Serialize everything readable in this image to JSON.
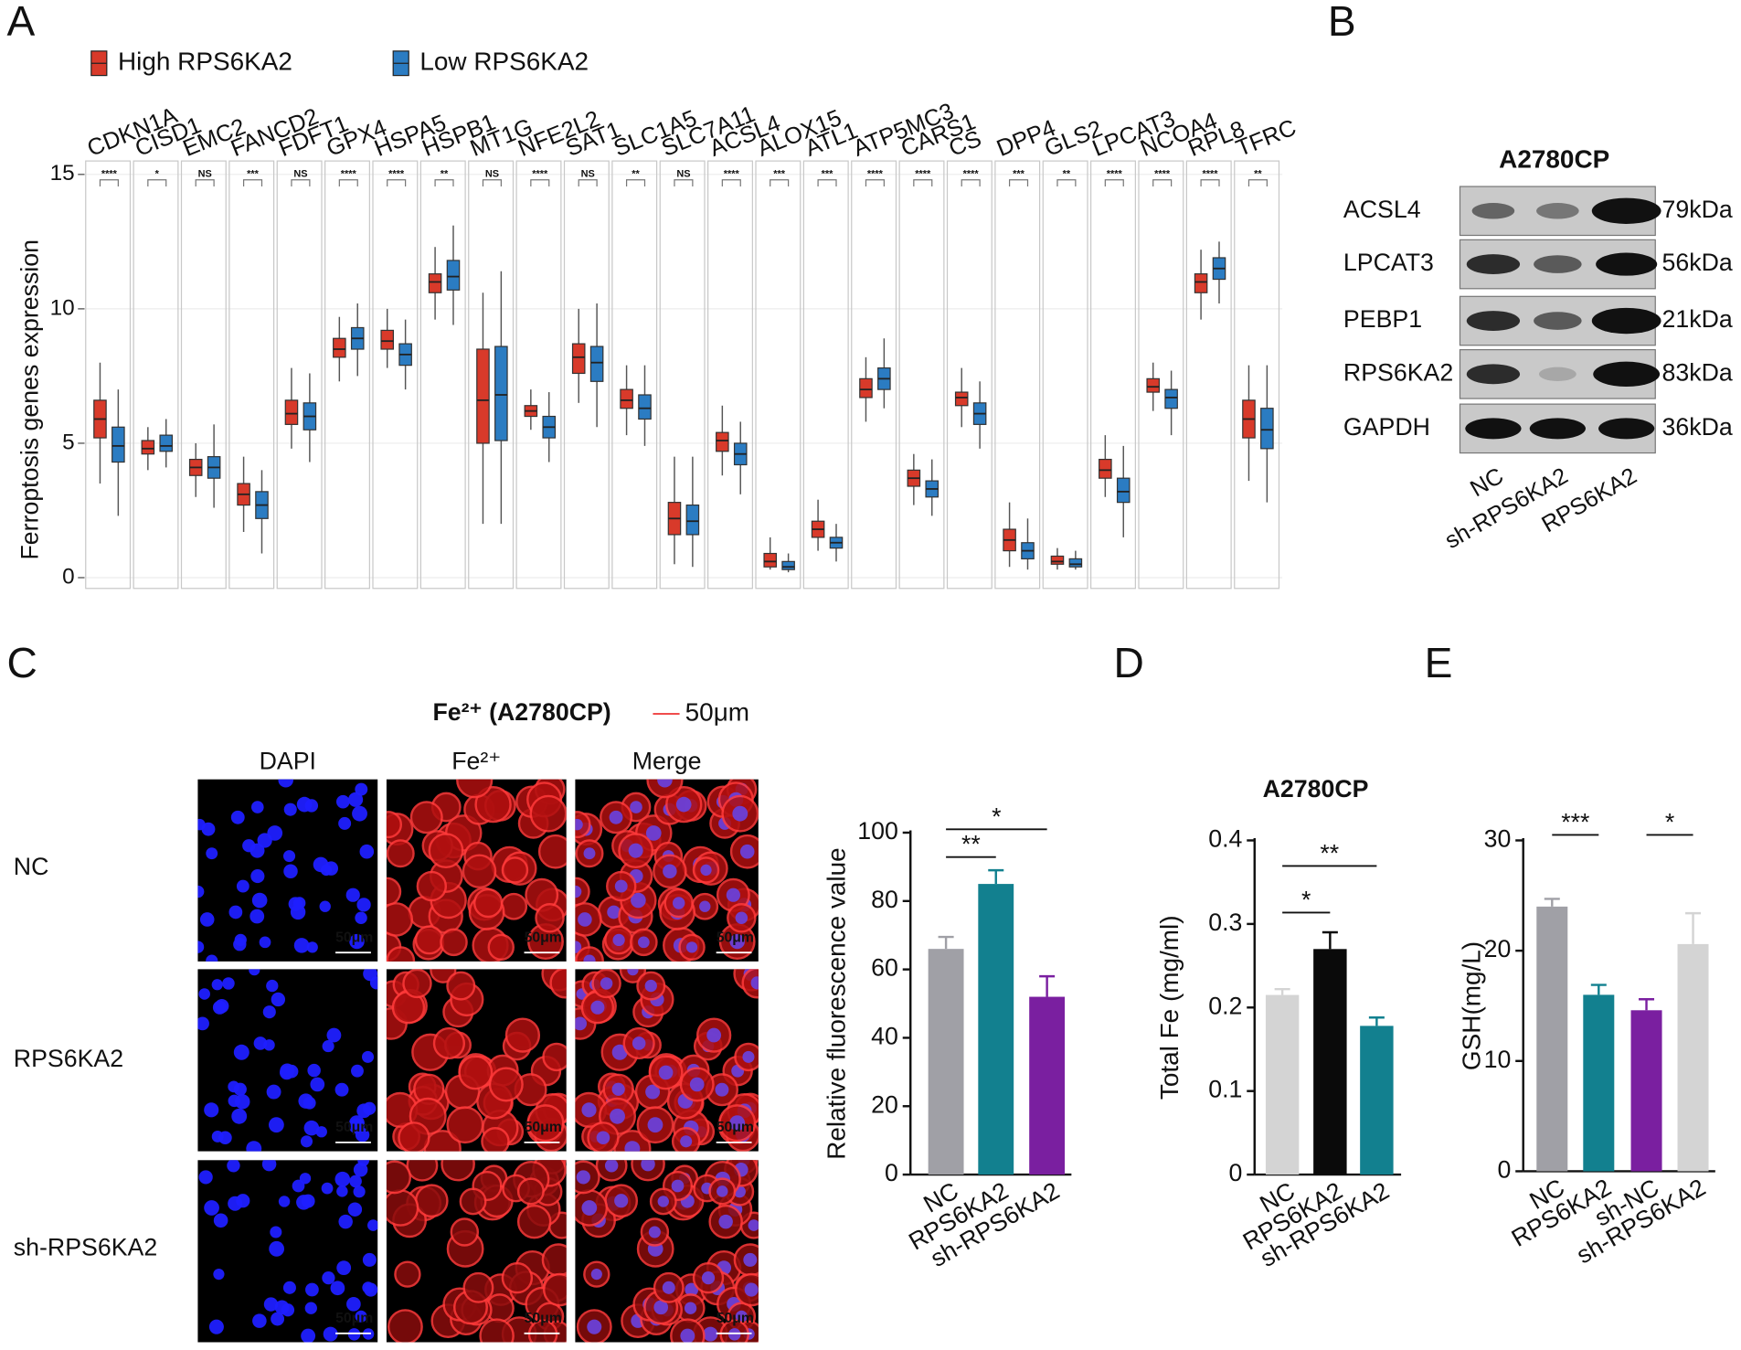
{
  "panel_labels": [
    "A",
    "B",
    "C",
    "D",
    "E"
  ],
  "chart_data": [
    {
      "type": "box",
      "ylabel": "Ferroptosis genes expression",
      "categories": [
        "CDKN1A",
        "CISD1",
        "EMC2",
        "FANCD2",
        "FDFT1",
        "GPX4",
        "HSPA5",
        "HSPB1",
        "MT1G",
        "NFE2L2",
        "SAT1",
        "SLC1A5",
        "SLC7A11",
        "ACSL4",
        "ALOX15",
        "ATL1",
        "ATP5MC3",
        "CARS1",
        "CS",
        "DPP4",
        "GLS2",
        "LPCAT3",
        "NCOA4",
        "RPL8",
        "TFRC"
      ],
      "significance": [
        "****",
        "*",
        "NS",
        "***",
        "NS",
        "****",
        "****",
        "**",
        "NS",
        "****",
        "NS",
        "**",
        "NS",
        "****",
        "***",
        "***",
        "****",
        "****",
        "****",
        "***",
        "**",
        "****",
        "****",
        "****",
        "**"
      ],
      "series": [
        {
          "name": "High RPS6KA2",
          "color": "#d83a2a",
          "values": [
            [
              3.5,
              5.2,
              5.9,
              6.6,
              8
            ],
            [
              4,
              4.6,
              4.8,
              5.1,
              5.6
            ],
            [
              3,
              3.8,
              4.1,
              4.4,
              5
            ],
            [
              1.7,
              2.7,
              3.1,
              3.5,
              4.5
            ],
            [
              4.8,
              5.7,
              6.1,
              6.6,
              7.8
            ],
            [
              7.3,
              8.2,
              8.5,
              8.9,
              9.7
            ],
            [
              7.8,
              8.5,
              8.8,
              9.2,
              10
            ],
            [
              9.6,
              10.6,
              11,
              11.3,
              12.3
            ],
            [
              2,
              5,
              6.6,
              8.5,
              10.6
            ],
            [
              5.5,
              6,
              6.2,
              6.4,
              7
            ],
            [
              6.5,
              7.6,
              8.2,
              8.7,
              10
            ],
            [
              5.3,
              6.3,
              6.6,
              7,
              7.9
            ],
            [
              0.5,
              1.6,
              2.2,
              2.8,
              4.5
            ],
            [
              3.8,
              4.7,
              5.1,
              5.4,
              6.4
            ],
            [
              0.3,
              0.4,
              0.6,
              0.9,
              1.5
            ],
            [
              1,
              1.5,
              1.8,
              2.1,
              2.9
            ],
            [
              5.8,
              6.7,
              7,
              7.4,
              8.2
            ],
            [
              2.7,
              3.4,
              3.7,
              4,
              4.6
            ],
            [
              5.6,
              6.4,
              6.7,
              6.9,
              7.8
            ],
            [
              0.4,
              1,
              1.4,
              1.8,
              2.8
            ],
            [
              0.3,
              0.5,
              0.6,
              0.8,
              1.1
            ],
            [
              3,
              3.7,
              4,
              4.4,
              5.3
            ],
            [
              6.2,
              6.9,
              7.1,
              7.4,
              8
            ],
            [
              9.6,
              10.6,
              11,
              11.3,
              12.2
            ],
            [
              3.6,
              5.2,
              5.9,
              6.6,
              7.9
            ]
          ]
        },
        {
          "name": "Low RPS6KA2",
          "color": "#2b7cc2",
          "values": [
            [
              2.3,
              4.3,
              4.9,
              5.6,
              7
            ],
            [
              4.1,
              4.7,
              4.9,
              5.3,
              5.9
            ],
            [
              2.6,
              3.7,
              4.1,
              4.5,
              5.7
            ],
            [
              0.9,
              2.2,
              2.7,
              3.2,
              4
            ],
            [
              4.3,
              5.5,
              6,
              6.5,
              7.6
            ],
            [
              7.5,
              8.5,
              8.9,
              9.3,
              10.2
            ],
            [
              7,
              7.9,
              8.3,
              8.7,
              9.6
            ],
            [
              9.4,
              10.7,
              11.2,
              11.8,
              13.1
            ],
            [
              2,
              5.1,
              6.8,
              8.6,
              11.4
            ],
            [
              4.3,
              5.2,
              5.6,
              6,
              6.9
            ],
            [
              5.6,
              7.3,
              8,
              8.6,
              10.2
            ],
            [
              4.9,
              5.9,
              6.3,
              6.8,
              7.9
            ],
            [
              0.4,
              1.6,
              2.1,
              2.7,
              4.5
            ],
            [
              3.1,
              4.2,
              4.6,
              5,
              5.8
            ],
            [
              0.2,
              0.3,
              0.4,
              0.6,
              0.9
            ],
            [
              0.6,
              1.1,
              1.3,
              1.5,
              2
            ],
            [
              6.3,
              7,
              7.4,
              7.8,
              8.9
            ],
            [
              2.3,
              3,
              3.3,
              3.6,
              4.4
            ],
            [
              4.8,
              5.7,
              6.1,
              6.5,
              7.3
            ],
            [
              0.3,
              0.7,
              1,
              1.3,
              2.2
            ],
            [
              0.3,
              0.4,
              0.5,
              0.7,
              1
            ],
            [
              1.5,
              2.8,
              3.2,
              3.7,
              4.9
            ],
            [
              5.3,
              6.3,
              6.7,
              7,
              7.7
            ],
            [
              10.2,
              11.1,
              11.5,
              11.9,
              12.5
            ],
            [
              2.8,
              4.8,
              5.5,
              6.3,
              7.9
            ]
          ]
        }
      ],
      "ylim": [
        -0.4,
        15.5
      ],
      "yticks": [
        0,
        5,
        10,
        15
      ],
      "grid": true
    },
    {
      "type": "bar",
      "ylabel": "Relative fluorescence value",
      "categories": [
        "NC",
        "RPS6KA2",
        "sh-RPS6KA2"
      ],
      "values": [
        66,
        85,
        52
      ],
      "errors": [
        3.5,
        4,
        6
      ],
      "colors": [
        "#a0a0a6",
        "#12808f",
        "#7a1fa0"
      ],
      "ylim": [
        0,
        100
      ],
      "yticks": [
        0,
        20,
        40,
        60,
        80,
        100
      ],
      "annotations": [
        "**",
        "*"
      ]
    },
    {
      "type": "bar",
      "title": "A2780CP",
      "ylabel": "Total Fe (mg/ml)",
      "categories": [
        "NC",
        "RPS6KA2",
        "sh-RPS6KA2"
      ],
      "values": [
        0.215,
        0.27,
        0.178
      ],
      "errors": [
        0.007,
        0.02,
        0.01
      ],
      "colors": [
        "#d4d4d4",
        "#0a0a0a",
        "#12808f"
      ],
      "ylim": [
        0,
        0.4
      ],
      "yticks": [
        0,
        0.1,
        0.2,
        0.3,
        0.4
      ],
      "annotations": [
        "*",
        "**"
      ]
    },
    {
      "type": "bar",
      "ylabel": "GSH(mg/L)",
      "categories": [
        "NC",
        "RPS6KA2",
        "sh-NC",
        "sh-RPS6KA2"
      ],
      "values": [
        24,
        16,
        14.6,
        20.6
      ],
      "errors": [
        0.7,
        0.9,
        1,
        2.8
      ],
      "colors": [
        "#a0a0a6",
        "#12808f",
        "#7a1fa0",
        "#d4d4d4"
      ],
      "ylim": [
        0,
        30
      ],
      "yticks": [
        0,
        10,
        20,
        30
      ],
      "annotations": [
        "***",
        "*"
      ]
    }
  ],
  "western_blot": {
    "title": "A2780CP",
    "proteins": [
      "ACSL4",
      "LPCAT3",
      "PEBP1",
      "RPS6KA2",
      "GAPDH"
    ],
    "sizes": [
      "79kDa",
      "56kDa",
      "21kDa",
      "83kDa",
      "36kDa"
    ],
    "lanes": [
      "NC",
      "sh-RPS6KA2",
      "RPS6KA2"
    ]
  },
  "microscopy": {
    "title": "Fe²⁺ (A2780CP)",
    "scale_label": "50μm",
    "columns": [
      "DAPI",
      "Fe²⁺",
      "Merge"
    ],
    "rows": [
      "NC",
      "RPS6KA2",
      "sh-RPS6KA2"
    ]
  }
}
